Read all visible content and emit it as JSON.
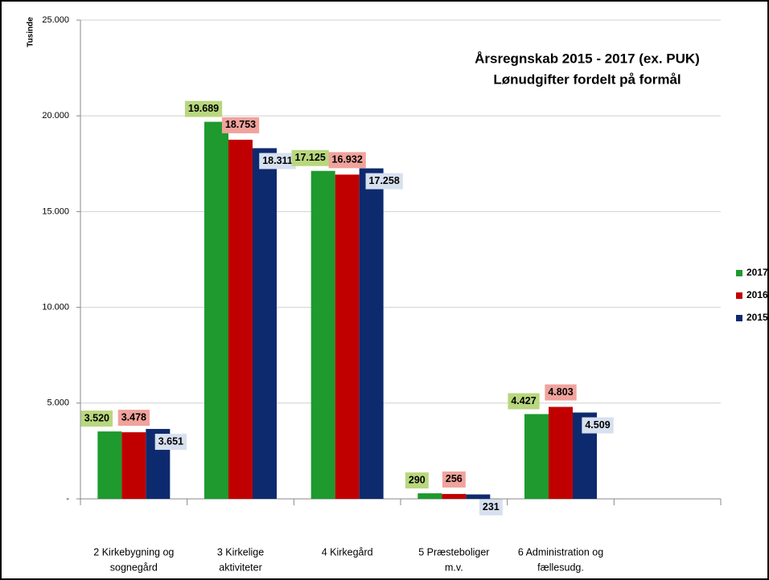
{
  "chart_data": {
    "type": "bar",
    "title": [
      "Årsregnskab 2015 - 2017 (ex. PUK)",
      "Lønudgifter fordelt på formål"
    ],
    "y_label": "Tusinde",
    "categories": [
      [
        "2 Kirkebygning og",
        "sognegård"
      ],
      [
        "3 Kirkelige",
        "aktiviteter"
      ],
      [
        "4 Kirkegård"
      ],
      [
        "5 Præsteboliger",
        "m.v."
      ],
      [
        "6 Administration og",
        "fællesudg."
      ],
      null
    ],
    "series": [
      {
        "name": "2017",
        "color": "#1e9a2e",
        "label_bg": "#b9d77e",
        "values": [
          3520,
          19689,
          17125,
          290,
          4427,
          null
        ],
        "value_labels": [
          "3.520",
          "19.689",
          "17.125",
          "290",
          "4.427",
          null
        ]
      },
      {
        "name": "2016",
        "color": "#c00000",
        "label_bg": "#f0a39c",
        "values": [
          3478,
          18753,
          16932,
          256,
          4803,
          null
        ],
        "value_labels": [
          "3.478",
          "18.753",
          "16.932",
          "256",
          "4.803",
          null
        ]
      },
      {
        "name": "2015",
        "color": "#0e2a6e",
        "label_bg": "#d7e0ef",
        "values": [
          3651,
          18311,
          17258,
          231,
          4509,
          null
        ],
        "value_labels": [
          "3.651",
          "18.311",
          "17.258",
          "231",
          "4.509",
          null
        ]
      }
    ],
    "ylim": [
      0,
      25000
    ],
    "yticks": [
      {
        "value": 0,
        "label": "-"
      },
      {
        "value": 5000,
        "label": "5.000"
      },
      {
        "value": 10000,
        "label": "10.000"
      },
      {
        "value": 15000,
        "label": "15.000"
      },
      {
        "value": 20000,
        "label": "20.000"
      },
      {
        "value": 25000,
        "label": "25.000"
      }
    ],
    "grid": true,
    "legend": "right"
  }
}
